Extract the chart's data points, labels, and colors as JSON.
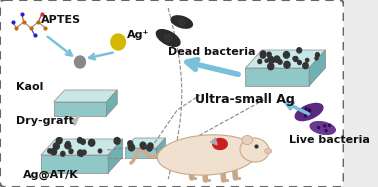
{
  "bg_color": "#ebebeb",
  "border_color": "#666666",
  "labels": {
    "aptes": "APTES",
    "ag_ion": "Ag⁺",
    "kaol": "Kaol",
    "dry_graft": "Dry-graft",
    "ag_atk": "Ag@AT/K",
    "ultra_small": "Ultra-small Ag",
    "dead_bacteria": "Dead bacteria",
    "live_bacteria": "Live bacteria"
  },
  "kaol_top": "#c8e8e8",
  "kaol_front": "#90c8c8",
  "kaol_side": "#70b0b0",
  "ag_dot_color": "#d4b800",
  "dead_bacteria_color": "#2a2a2a",
  "live_bacteria_color1": "#5a2a80",
  "live_bacteria_color2": "#6a3a90",
  "arrow_blue": "#7ac0dc",
  "arrow_gray": "#aaaaaa",
  "dashed_color": "#888888",
  "mouse_body": "#f0e0d0",
  "mouse_outline": "#c8a888",
  "wound_color": "#cc2020",
  "text_color": "#111111",
  "font_size": 7,
  "font_size_medium": 8
}
